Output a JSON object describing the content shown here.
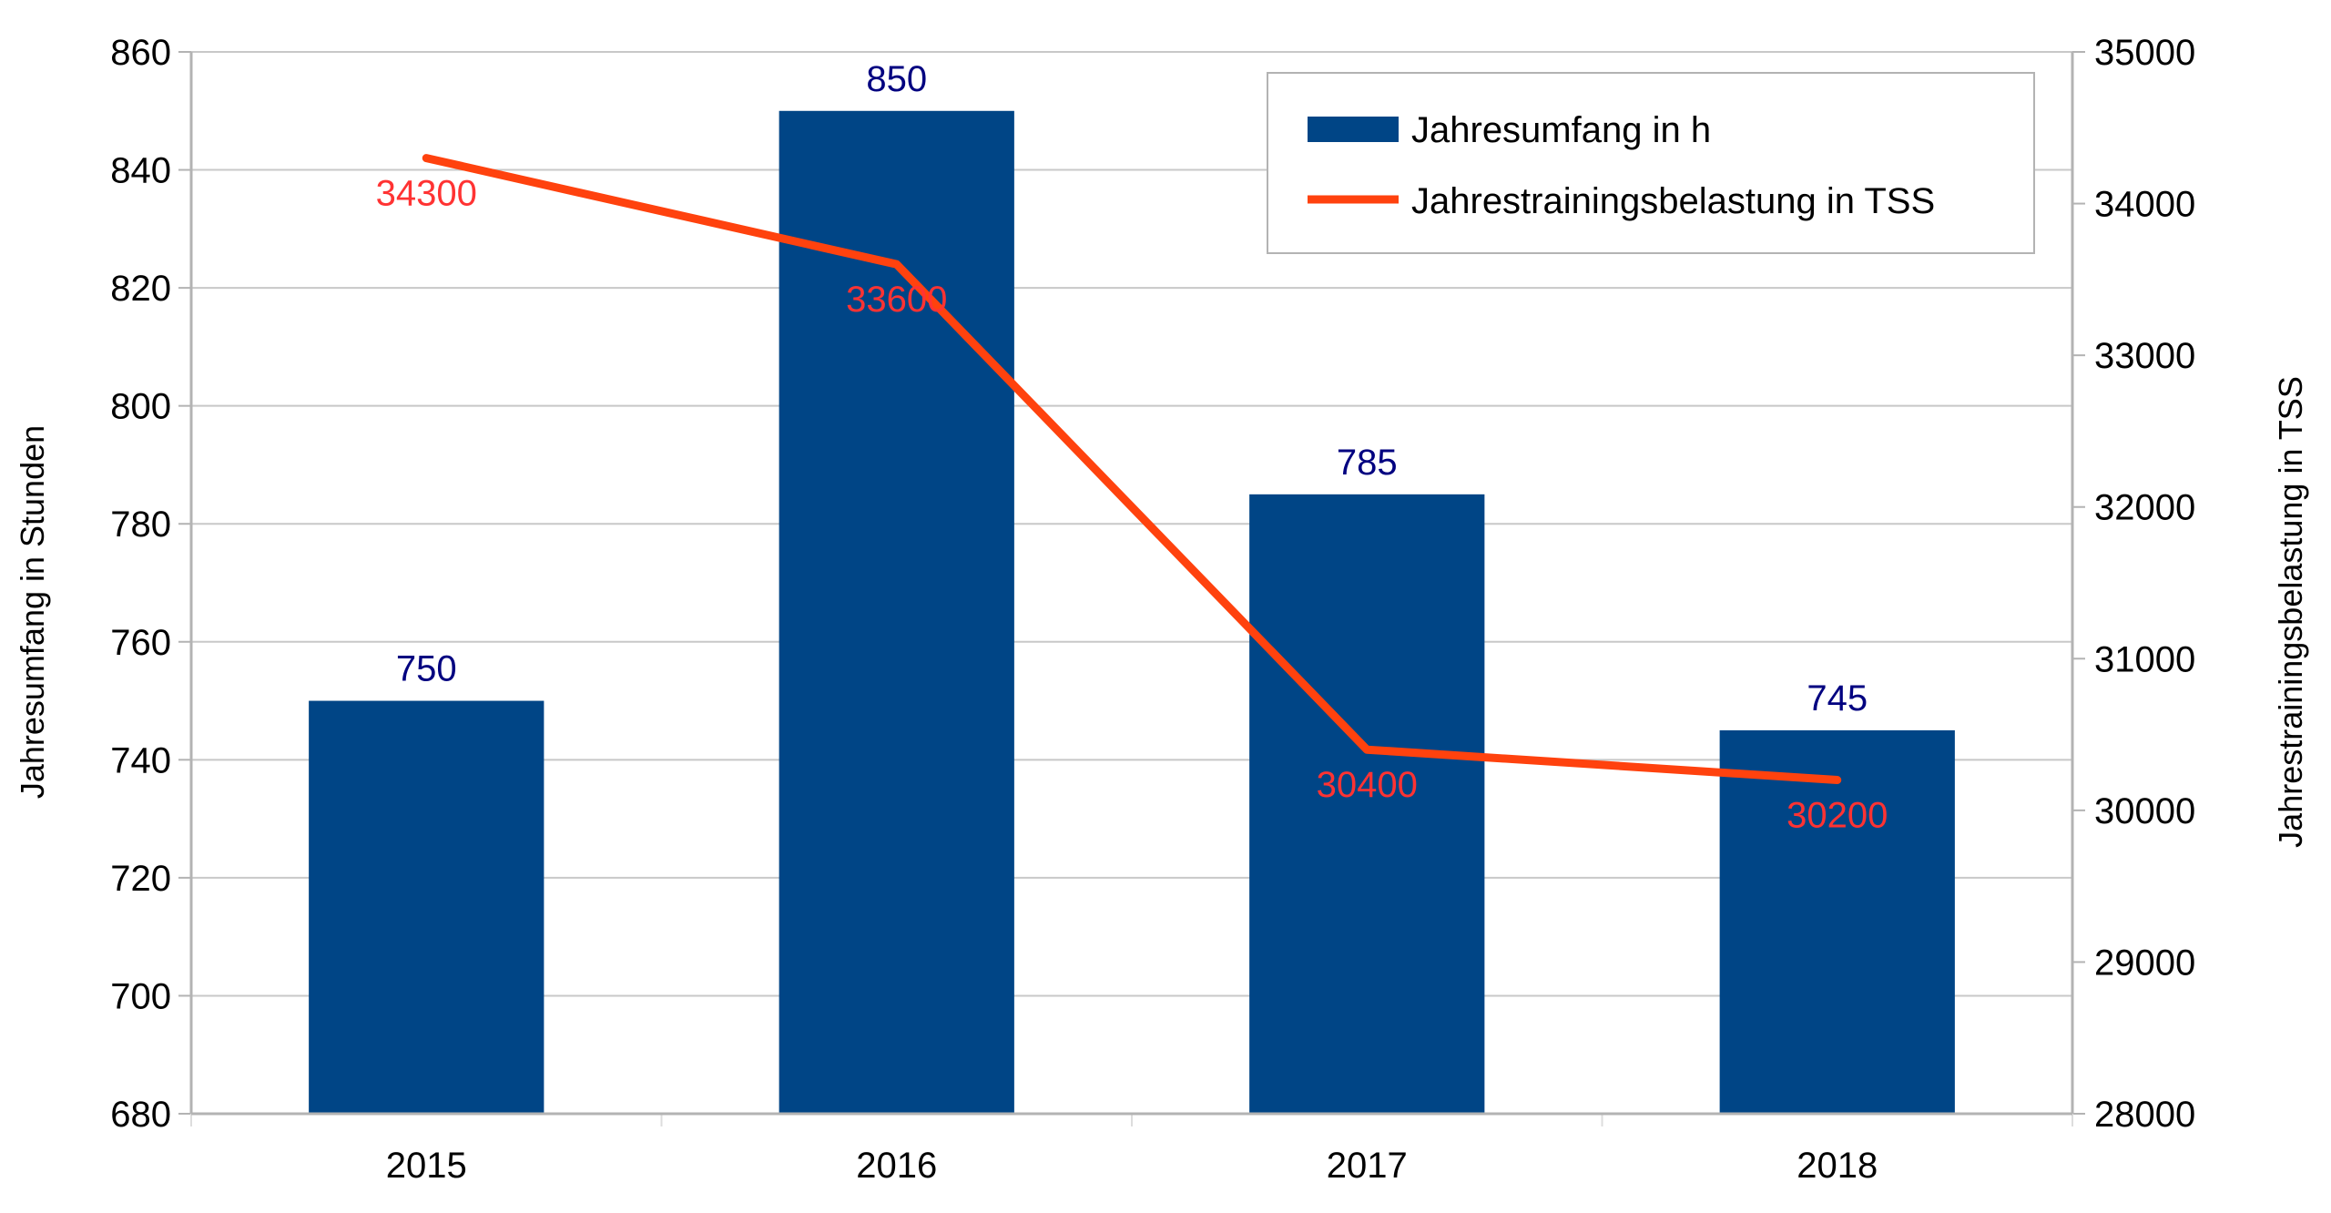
{
  "chart_data": {
    "type": "bar",
    "title": "",
    "categories": [
      "2015",
      "2016",
      "2017",
      "2018"
    ],
    "xlabel": "",
    "ylabel": "Jahresumfang in Stunden",
    "y2label": "Jahrestrainingsbelastung in TSS",
    "ylim": [
      680,
      860
    ],
    "y2lim": [
      28000,
      35000
    ],
    "yticks": [
      "680",
      "700",
      "720",
      "740",
      "760",
      "780",
      "800",
      "820",
      "840",
      "860"
    ],
    "y2ticks": [
      "28000",
      "29000",
      "30000",
      "31000",
      "32000",
      "33000",
      "34000",
      "35000"
    ],
    "grid": true,
    "legend_position": "top-right",
    "series": [
      {
        "name": "Jahresumfang in h",
        "type": "bar",
        "axis": "left",
        "color": "#004586",
        "label_color": "#000080",
        "values": [
          750,
          850,
          785,
          745
        ],
        "labels": [
          "750",
          "850",
          "785",
          "745"
        ]
      },
      {
        "name": "Jahrestrainingsbelastung in TSS",
        "type": "line",
        "axis": "right",
        "color": "#ff420e",
        "label_color": "#ff3333",
        "values": [
          34300,
          33600,
          30400,
          30200
        ],
        "labels": [
          "34300",
          "33600",
          "30400",
          "30200"
        ]
      }
    ]
  }
}
